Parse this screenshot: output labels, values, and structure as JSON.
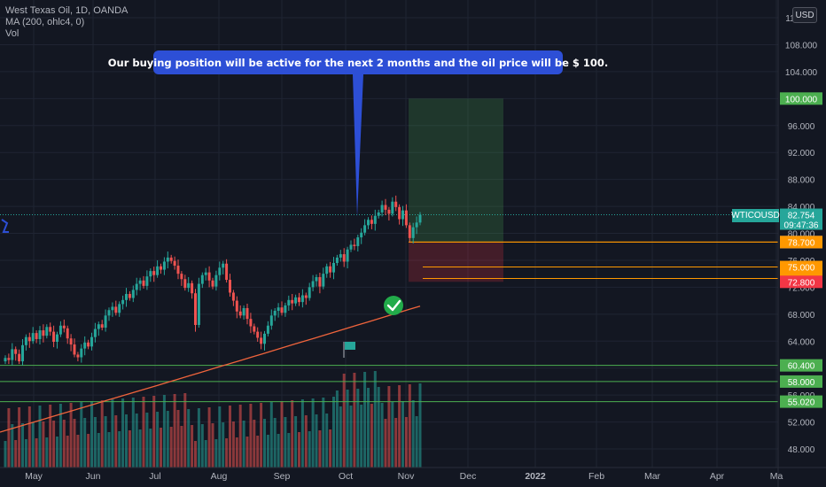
{
  "legend": {
    "symbol_line": "West Texas Oil, 1D, OANDA",
    "ma_line": "MA (200, ohlc4, 0)",
    "vol_line": "Vol"
  },
  "currency": "USD",
  "callout_text": "Our buying position will be active for the next 2 months and the oil price will be $ 100.",
  "symbol_tag": "WTICOUSD",
  "chart_data": {
    "type": "candlestick",
    "title": "West Texas Oil, 1D, OANDA",
    "y_ticks": [
      48,
      52,
      56,
      60,
      64,
      68,
      72,
      76,
      80,
      84,
      88,
      92,
      96,
      100,
      104,
      108,
      112
    ],
    "y_tick_labels": [
      "48.000",
      "52.000",
      "56.000",
      "60.000",
      "64.000",
      "68.000",
      "72.000",
      "76.000",
      "80.000",
      "84.000",
      "88.000",
      "92.000",
      "96.000",
      "100.000",
      "104.000",
      "108.000",
      "112.000"
    ],
    "x_ticks": [
      "May",
      "Jun",
      "Jul",
      "Aug",
      "Sep",
      "Oct",
      "Nov",
      "Dec",
      "2022",
      "Feb",
      "Mar",
      "Apr",
      "Ma"
    ],
    "series_close": [
      61.5,
      61.2,
      62.8,
      62.1,
      61.0,
      63.4,
      64.6,
      64.0,
      65.2,
      64.3,
      65.6,
      64.8,
      66.1,
      65.4,
      63.9,
      65.0,
      66.3,
      65.9,
      64.4,
      63.5,
      62.0,
      61.6,
      62.9,
      63.8,
      63.2,
      64.6,
      65.8,
      66.5,
      66.0,
      67.8,
      68.6,
      69.1,
      68.2,
      69.5,
      70.1,
      71.0,
      70.4,
      71.6,
      72.5,
      73.0,
      72.2,
      73.6,
      74.4,
      73.8,
      75.1,
      74.6,
      75.8,
      76.4,
      75.9,
      75.2,
      74.0,
      73.2,
      71.9,
      72.6,
      71.1,
      66.4,
      72.5,
      73.8,
      74.2,
      73.0,
      72.1,
      73.8,
      74.9,
      75.5,
      73.1,
      71.2,
      70.0,
      68.4,
      67.8,
      68.9,
      67.3,
      66.2,
      65.4,
      64.5,
      63.6,
      65.1,
      66.3,
      67.8,
      68.5,
      69.0,
      68.2,
      69.3,
      70.1,
      69.6,
      70.5,
      69.8,
      70.8,
      70.4,
      72.0,
      72.9,
      73.5,
      72.1,
      74.0,
      75.1,
      74.2,
      75.6,
      76.4,
      76.9,
      75.8,
      77.6,
      78.3,
      78.1,
      79.4,
      80.1,
      81.2,
      82.0,
      81.4,
      82.6,
      83.1,
      84.2,
      83.5,
      82.9,
      84.7,
      83.9,
      82.1,
      83.4,
      81.2,
      79.3,
      80.9,
      81.6,
      82.75
    ],
    "highlight_levels": [
      {
        "value": 100.0,
        "label": "100.000",
        "color": "#4caf50"
      },
      {
        "value": 82.754,
        "label": "82.754",
        "color": "#26a69a",
        "sub": "09:47:36"
      },
      {
        "value": 78.701,
        "label": "78.701",
        "color": "#ffffff"
      },
      {
        "value": 78.7,
        "label": "78.700",
        "color": "#ff9800"
      },
      {
        "value": 75.0,
        "label": "75.000",
        "color": "#ff9800"
      },
      {
        "value": 73.3,
        "label": "73.300",
        "color": "#ff9800"
      },
      {
        "value": 72.8,
        "label": "72.800",
        "color": "#f23645"
      },
      {
        "value": 60.4,
        "label": "60.400",
        "color": "#4caf50"
      },
      {
        "value": 58.0,
        "label": "58.000",
        "color": "#4caf50"
      },
      {
        "value": 55.02,
        "label": "55.020",
        "color": "#4caf50"
      }
    ],
    "target": 100.0,
    "entry": 78.701,
    "stop": 72.8,
    "y_range": [
      46,
      114
    ]
  }
}
